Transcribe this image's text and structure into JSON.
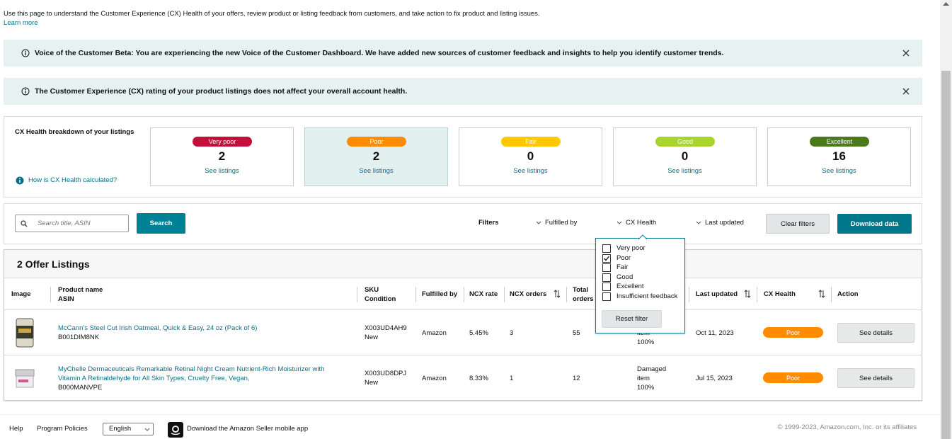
{
  "header": {
    "intro": "Use this page to understand the Customer Experience (CX) Health of your offers, review product or listing feedback from customers, and take action to fix product and listing issues.",
    "learn_more": "Learn more"
  },
  "banners": [
    "Voice of the Customer Beta: You are experiencing the new Voice of the Customer Dashboard. We have added new sources of customer feedback and insights to help you identify customer trends.",
    "The Customer Experience (CX) rating of your product listings does not affect your overall account health."
  ],
  "breakdown": {
    "title": "CX Health breakdown of your listings",
    "help": "How is CX Health calculated?",
    "cards": [
      {
        "label": "Very poor",
        "count": 2,
        "link": "See listings",
        "color": "#c40f3a"
      },
      {
        "label": "Poor",
        "count": 2,
        "link": "See listings",
        "color": "#ff8c00"
      },
      {
        "label": "Fair",
        "count": 0,
        "link": "See listings",
        "color": "#ffc800"
      },
      {
        "label": "Good",
        "count": 0,
        "link": "See listings",
        "color": "#a8d52c"
      },
      {
        "label": "Excellent",
        "count": 16,
        "link": "See listings",
        "color": "#4a7a1a"
      }
    ]
  },
  "toolbar": {
    "search_placeholder": "Search title, ASIN",
    "search": "Search",
    "filters": "Filters",
    "fulfilled_by": "Fulfilled by",
    "cx_health": "CX Health",
    "last_updated": "Last updated",
    "clear": "Clear filters",
    "download": "Download data"
  },
  "dropdown": {
    "options": [
      {
        "label": "Very poor",
        "checked": false
      },
      {
        "label": "Poor",
        "checked": true
      },
      {
        "label": "Fair",
        "checked": false
      },
      {
        "label": "Good",
        "checked": false
      },
      {
        "label": "Excellent",
        "checked": false
      },
      {
        "label": "Insufficient feedback",
        "checked": false
      }
    ],
    "reset": "Reset filter"
  },
  "table": {
    "title": "2 Offer Listings",
    "columns": [
      [
        "Image"
      ],
      [
        "Product name",
        "ASIN"
      ],
      [
        "SKU",
        "Condition"
      ],
      [
        "Fulfilled by"
      ],
      [
        "NCX rate"
      ],
      [
        "NCX orders"
      ],
      [
        "Total",
        "orders"
      ],
      [
        "Last updated"
      ],
      [
        "CX Health"
      ],
      [
        "Action"
      ]
    ],
    "rows": [
      {
        "product": "McCann's Steel Cut Irish Oatmeal, Quick & Easy, 24 oz (Pack of 6)",
        "asin": "B001DIM8NK",
        "sku": "X003UD4AH9",
        "condition": "New",
        "fulfilled_by": "Amazon",
        "ncx_rate": "5.45%",
        "ncx_orders": 3,
        "total_orders": 55,
        "reason": "Damaged item",
        "reason_share": "100%",
        "last_updated": "Oct 11, 2023",
        "cx_health": "Poor",
        "action": "See details"
      },
      {
        "product": "MyChelle Dermaceuticals Remarkable Retinal Night Cream Nutrient-Rich Moisturizer with Vitamin A Retinaldehyde for All Skin Types, Cruelty Free, Vegan,",
        "asin": "B000MANVPE",
        "sku": "X003UD8DPJ",
        "condition": "New",
        "fulfilled_by": "Amazon",
        "ncx_rate": "8.33%",
        "ncx_orders": 1,
        "total_orders": 12,
        "reason": "Damaged item",
        "reason_share": "100%",
        "last_updated": "Jul 15, 2023",
        "cx_health": "Poor",
        "action": "See details"
      }
    ]
  },
  "footer": {
    "help": "Help",
    "policies": "Program Policies",
    "language": "English",
    "app": "Download the Amazon Seller mobile app",
    "copyright": "© 1999-2023, Amazon.com, Inc. or its affiliates"
  }
}
